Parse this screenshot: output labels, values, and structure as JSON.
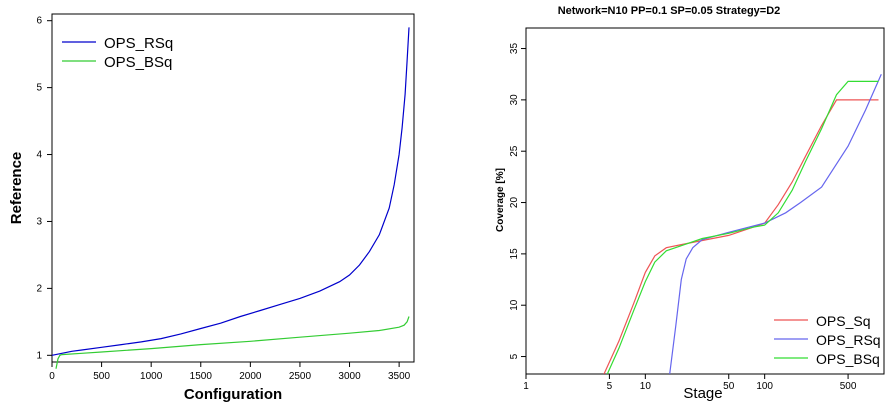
{
  "chart_data": [
    {
      "type": "line",
      "title": "",
      "xlabel": "Configuration",
      "ylabel": "Reference",
      "xlim": [
        0,
        3650
      ],
      "ylim": [
        0.9,
        6.1
      ],
      "x_ticks": [
        0,
        500,
        1000,
        1500,
        2000,
        2500,
        3000,
        3500
      ],
      "y_ticks": [
        1,
        2,
        3,
        4,
        5,
        6
      ],
      "legend_position": "top-left",
      "series": [
        {
          "name": "OPS_RSq",
          "color": "#0000cc",
          "x": [
            0,
            100,
            200,
            300,
            500,
            700,
            900,
            1100,
            1300,
            1500,
            1700,
            1900,
            2100,
            2300,
            2500,
            2700,
            2900,
            3000,
            3100,
            3200,
            3300,
            3400,
            3450,
            3500,
            3530,
            3560,
            3580,
            3600
          ],
          "y": [
            1.0,
            1.03,
            1.06,
            1.08,
            1.12,
            1.16,
            1.2,
            1.25,
            1.32,
            1.4,
            1.48,
            1.58,
            1.67,
            1.76,
            1.85,
            1.96,
            2.1,
            2.2,
            2.35,
            2.55,
            2.8,
            3.2,
            3.55,
            4.0,
            4.4,
            4.9,
            5.4,
            5.9
          ]
        },
        {
          "name": "OPS_BSq",
          "color": "#33cc33",
          "x": [
            40,
            60,
            80,
            100,
            300,
            500,
            1000,
            1500,
            2000,
            2500,
            3000,
            3300,
            3500,
            3550,
            3580,
            3600
          ],
          "y": [
            0.8,
            0.95,
            1.0,
            1.01,
            1.03,
            1.05,
            1.1,
            1.16,
            1.21,
            1.27,
            1.33,
            1.37,
            1.42,
            1.45,
            1.5,
            1.58
          ]
        }
      ]
    },
    {
      "type": "line",
      "title": "Network=N10 PP=0.1 SP=0.05 Strategy=D2",
      "xlabel": "Stage",
      "ylabel": "Coverage [%]",
      "x_scale": "log",
      "xlim": [
        1,
        1000
      ],
      "ylim": [
        3.3,
        37
      ],
      "x_ticks": [
        1,
        5,
        10,
        50,
        100,
        500
      ],
      "y_ticks": [
        5,
        10,
        15,
        20,
        25,
        30,
        35
      ],
      "legend_position": "bottom-right",
      "series": [
        {
          "name": "OPS_Sq",
          "color": "#ee5555",
          "x": [
            4.5,
            6,
            8,
            10,
            12,
            15,
            20,
            30,
            50,
            80,
            100,
            130,
            170,
            220,
            300,
            400,
            500,
            900
          ],
          "y": [
            3.3,
            6.5,
            10.2,
            13.2,
            14.8,
            15.6,
            15.9,
            16.3,
            16.8,
            17.6,
            18.0,
            19.8,
            22.0,
            24.5,
            27.5,
            30.0,
            30.0,
            30.0
          ]
        },
        {
          "name": "OPS_RSq",
          "color": "#6666ee",
          "x": [
            16,
            18,
            20,
            22,
            25,
            30,
            50,
            100,
            150,
            200,
            300,
            500,
            700,
            950
          ],
          "y": [
            3.3,
            8.0,
            12.5,
            14.5,
            15.6,
            16.4,
            17.1,
            18.0,
            19.0,
            20.0,
            21.5,
            25.5,
            29.0,
            32.5
          ]
        },
        {
          "name": "OPS_BSq",
          "color": "#33dd33",
          "x": [
            4.8,
            6,
            8,
            10,
            12,
            15,
            20,
            30,
            50,
            80,
            100,
            130,
            170,
            220,
            300,
            400,
            500,
            900
          ],
          "y": [
            3.3,
            5.8,
            9.5,
            12.3,
            14.2,
            15.3,
            15.8,
            16.5,
            17.0,
            17.6,
            17.8,
            19.0,
            21.2,
            24.0,
            27.2,
            30.5,
            31.8,
            31.8
          ]
        }
      ]
    }
  ]
}
